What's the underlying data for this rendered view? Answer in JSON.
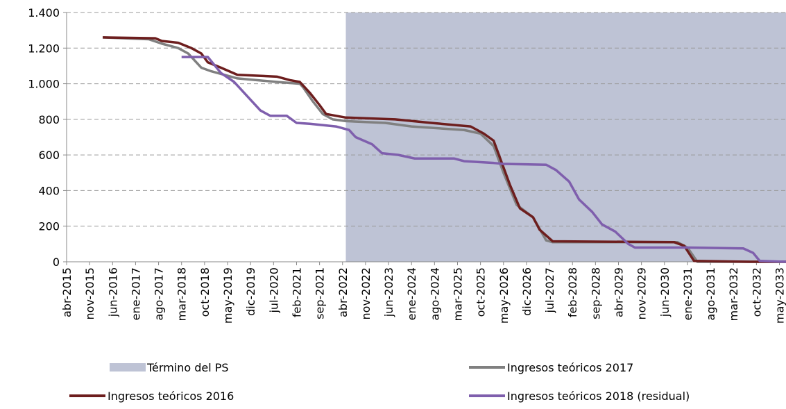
{
  "chart_data": {
    "type": "line",
    "xlim": [
      "2015-04",
      "2033-07"
    ],
    "ylim": [
      0,
      1400
    ],
    "yticks": [
      0,
      200,
      400,
      600,
      800,
      {
        "value": 1000,
        "label": "1.000"
      },
      {
        "value": 1200,
        "label": "1.200"
      },
      {
        "value": 1400,
        "label": "1.400"
      }
    ],
    "xticks": [
      {
        "value": "2015-04",
        "label": "abr-2015"
      },
      {
        "value": "2015-11",
        "label": "nov-2015"
      },
      {
        "value": "2016-06",
        "label": "jun-2016"
      },
      {
        "value": "2017-01",
        "label": "ene-2017"
      },
      {
        "value": "2017-08",
        "label": "ago-2017"
      },
      {
        "value": "2018-03",
        "label": "mar-2018"
      },
      {
        "value": "2018-10",
        "label": "oct-2018"
      },
      {
        "value": "2019-05",
        "label": "may-2019"
      },
      {
        "value": "2019-12",
        "label": "dic-2019"
      },
      {
        "value": "2020-07",
        "label": "jul-2020"
      },
      {
        "value": "2021-02",
        "label": "feb-2021"
      },
      {
        "value": "2021-09",
        "label": "sep-2021"
      },
      {
        "value": "2022-04",
        "label": "abr-2022"
      },
      {
        "value": "2022-11",
        "label": "nov-2022"
      },
      {
        "value": "2023-06",
        "label": "jun-2023"
      },
      {
        "value": "2024-01",
        "label": "ene-2024"
      },
      {
        "value": "2024-08",
        "label": "ago-2024"
      },
      {
        "value": "2025-03",
        "label": "mar-2025"
      },
      {
        "value": "2025-10",
        "label": "oct-2025"
      },
      {
        "value": "2026-05",
        "label": "may-2026"
      },
      {
        "value": "2026-12",
        "label": "dic-2026"
      },
      {
        "value": "2027-07",
        "label": "jul-2027"
      },
      {
        "value": "2028-02",
        "label": "feb-2028"
      },
      {
        "value": "2028-09",
        "label": "sep-2028"
      },
      {
        "value": "2029-04",
        "label": "abr-2029"
      },
      {
        "value": "2029-11",
        "label": "nov-2029"
      },
      {
        "value": "2030-06",
        "label": "jun-2030"
      },
      {
        "value": "2031-01",
        "label": "ene-2031"
      },
      {
        "value": "2031-08",
        "label": "ago-2031"
      },
      {
        "value": "2032-03",
        "label": "mar-2032"
      },
      {
        "value": "2032-10",
        "label": "oct-2032"
      },
      {
        "value": "2033-05",
        "label": "may-2033"
      }
    ],
    "grid": true,
    "shaded_region": {
      "name": "Término del PS",
      "color": "#bec3d5",
      "x": [
        "2022-05",
        "2033-07"
      ]
    },
    "series": [
      {
        "name": "Ingresos teóricos 2017",
        "color": "#808080",
        "x": [
          "2016-03",
          "2017-05",
          "2017-09",
          "2018-02",
          "2018-05",
          "2018-09",
          "2018-12",
          "2019-08",
          "2020-08",
          "2021-03",
          "2021-04",
          "2021-07",
          "2021-10",
          "2022-01",
          "2022-05",
          "2023-05",
          "2024-01",
          "2025-05",
          "2025-10",
          "2026-02",
          "2026-05",
          "2026-09",
          "2027-02",
          "2027-06",
          "2027-08",
          "2030-10",
          "2031-01",
          "2031-04",
          "2033-07"
        ],
        "values": [
          1260,
          1250,
          1225,
          1200,
          1170,
          1090,
          1070,
          1030,
          1010,
          1000,
          980,
          900,
          830,
          800,
          790,
          780,
          760,
          740,
          720,
          650,
          500,
          320,
          250,
          120,
          110,
          110,
          80,
          0,
          0
        ]
      },
      {
        "name": "Ingresos teóricos 2016",
        "color": "#6d1e1e",
        "x": [
          "2016-03",
          "2017-07",
          "2017-09",
          "2018-02",
          "2018-06",
          "2018-09",
          "2018-11",
          "2019-03",
          "2019-08",
          "2020-08",
          "2020-12",
          "2021-03",
          "2021-06",
          "2021-09",
          "2021-11",
          "2022-05",
          "2023-08",
          "2024-07",
          "2025-07",
          "2025-11",
          "2026-02",
          "2026-04",
          "2026-07",
          "2026-10",
          "2027-02",
          "2027-04",
          "2027-08",
          "2030-09",
          "2030-12",
          "2031-03",
          "2032-08",
          "2033-07"
        ],
        "values": [
          1260,
          1255,
          1240,
          1230,
          1200,
          1170,
          1120,
          1090,
          1050,
          1040,
          1020,
          1010,
          950,
          880,
          830,
          810,
          800,
          780,
          760,
          720,
          680,
          580,
          430,
          300,
          250,
          180,
          115,
          110,
          90,
          5,
          0,
          0
        ]
      },
      {
        "name": "Ingresos teóricos 2018 (residual)",
        "color": "#7f5fad",
        "x": [
          "2018-03",
          "2018-11",
          "2019-03",
          "2019-07",
          "2019-10",
          "2020-03",
          "2020-06",
          "2020-11",
          "2021-02",
          "2021-06",
          "2022-02",
          "2022-06",
          "2022-08",
          "2023-01",
          "2023-04",
          "2023-09",
          "2024-02",
          "2025-02",
          "2025-05",
          "2026-02",
          "2026-05",
          "2027-06",
          "2027-09",
          "2028-01",
          "2028-04",
          "2028-08",
          "2028-11",
          "2029-03",
          "2029-07",
          "2029-09",
          "2031-01",
          "2032-06",
          "2032-09",
          "2032-11",
          "2033-07"
        ],
        "values": [
          1150,
          1150,
          1060,
          1010,
          950,
          850,
          820,
          820,
          780,
          775,
          760,
          740,
          700,
          660,
          610,
          600,
          580,
          580,
          565,
          555,
          550,
          545,
          515,
          450,
          350,
          280,
          210,
          170,
          100,
          80,
          80,
          75,
          50,
          5,
          0
        ]
      }
    ]
  }
}
